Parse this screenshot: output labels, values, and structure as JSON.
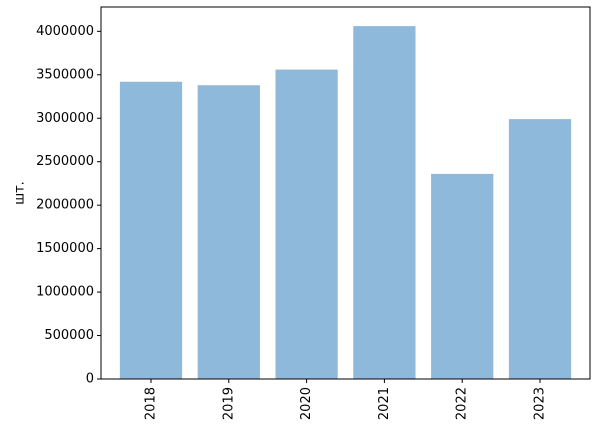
{
  "chart_data": {
    "type": "bar",
    "y_label": "шт.",
    "categories": [
      "2018",
      "2019",
      "2020",
      "2021",
      "2022",
      "2023"
    ],
    "values": [
      3420000,
      3380000,
      3560000,
      4060000,
      2360000,
      2990000
    ],
    "color": "#8fb9da",
    "ylim": [
      0,
      4280000
    ],
    "yticks": [
      0,
      500000,
      1000000,
      1500000,
      2000000,
      2500000,
      3000000,
      3500000,
      4000000
    ],
    "grid": false
  }
}
